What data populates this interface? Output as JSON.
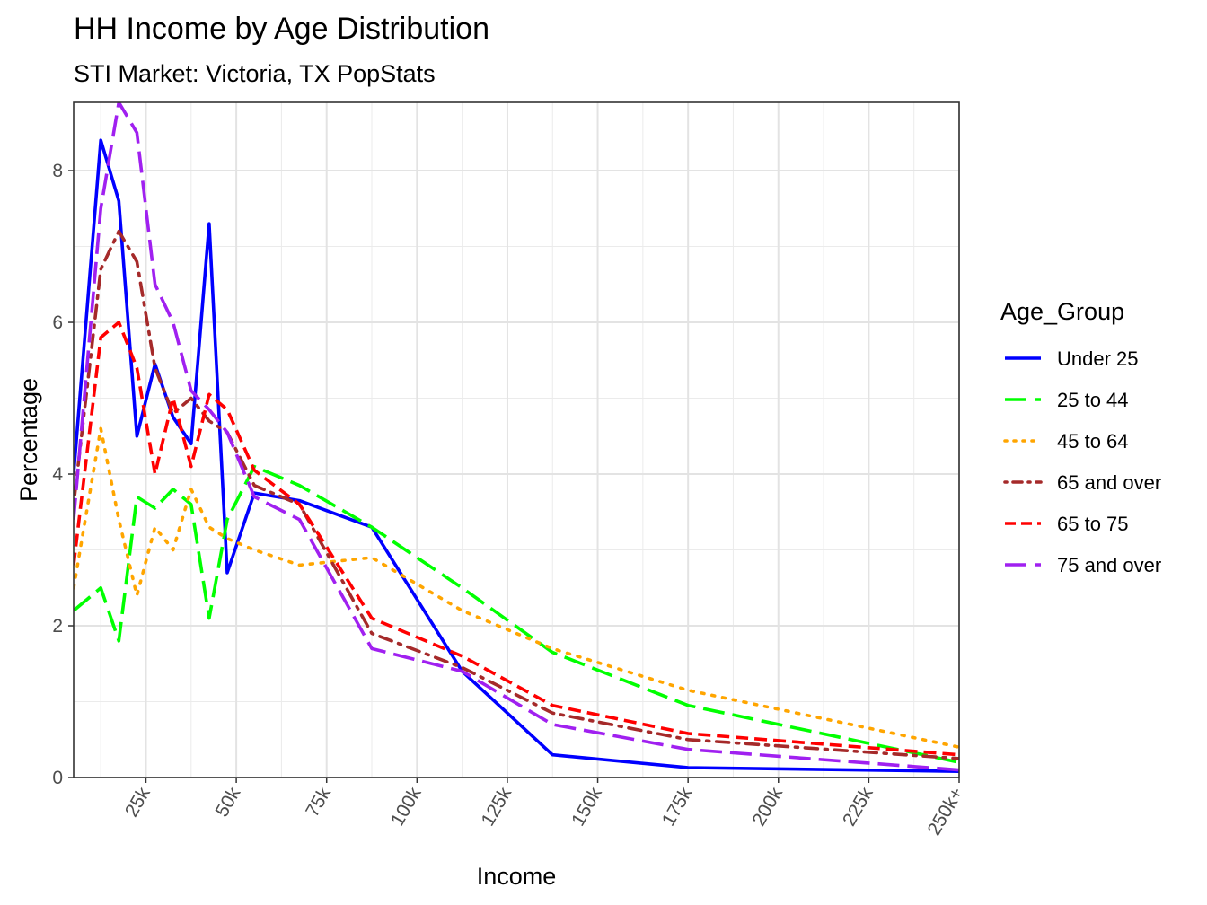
{
  "chart_data": {
    "type": "line",
    "title": "HH Income by Age Distribution",
    "subtitle": "STI Market: Victoria, TX PopStats",
    "xlabel": "Income",
    "ylabel": "Percentage",
    "xlim": [
      5,
      250
    ],
    "ylim": [
      0,
      8.9
    ],
    "x_ticks": [
      {
        "value": 25,
        "label": "25k"
      },
      {
        "value": 50,
        "label": "50k"
      },
      {
        "value": 75,
        "label": "75k"
      },
      {
        "value": 100,
        "label": "100k"
      },
      {
        "value": 125,
        "label": "125k"
      },
      {
        "value": 150,
        "label": "150k"
      },
      {
        "value": 175,
        "label": "175k"
      },
      {
        "value": 200,
        "label": "200k"
      },
      {
        "value": 225,
        "label": "225k"
      },
      {
        "value": 250,
        "label": "250k+"
      }
    ],
    "y_ticks": [
      {
        "value": 0,
        "label": "0"
      },
      {
        "value": 2,
        "label": "2"
      },
      {
        "value": 4,
        "label": "4"
      },
      {
        "value": 6,
        "label": "6"
      },
      {
        "value": 8,
        "label": "8"
      }
    ],
    "grid": true,
    "legend_position": "right",
    "legend_title": "Age_Group",
    "x": [
      5,
      12.5,
      17.5,
      22.5,
      27.5,
      32.5,
      37.5,
      42.5,
      47.5,
      55,
      67.5,
      87.5,
      112.5,
      137.5,
      175,
      250
    ],
    "series": [
      {
        "name": "Under 25",
        "color": "#0000FF",
        "dash": "solid",
        "values": [
          4.0,
          8.4,
          7.6,
          4.5,
          5.45,
          4.75,
          4.4,
          7.3,
          2.7,
          3.75,
          3.65,
          3.3,
          1.4,
          0.3,
          0.13,
          0.08
        ]
      },
      {
        "name": "25 to 44",
        "color": "#00FF00",
        "dash": "longdash",
        "values": [
          2.2,
          2.5,
          1.8,
          3.7,
          3.55,
          3.8,
          3.6,
          2.1,
          3.4,
          4.1,
          3.85,
          3.3,
          2.5,
          1.65,
          0.95,
          0.2
        ]
      },
      {
        "name": "45 to 64",
        "color": "#FFA500",
        "dash": "dotted",
        "values": [
          2.5,
          4.6,
          3.4,
          2.4,
          3.3,
          3.0,
          3.8,
          3.3,
          3.15,
          3.0,
          2.8,
          2.9,
          2.2,
          1.7,
          1.15,
          0.4
        ]
      },
      {
        "name": "65 and over",
        "color": "#A52A2A",
        "dash": "dotdash",
        "values": [
          3.6,
          6.7,
          7.2,
          6.8,
          5.4,
          4.8,
          5.0,
          4.7,
          4.55,
          3.85,
          3.6,
          1.9,
          1.45,
          0.85,
          0.5,
          0.25
        ]
      },
      {
        "name": "65 to 75",
        "color": "#FF0000",
        "dash": "dashed",
        "values": [
          2.8,
          5.8,
          6.0,
          5.4,
          4.0,
          5.0,
          4.1,
          5.05,
          4.85,
          4.05,
          3.6,
          2.1,
          1.6,
          0.95,
          0.58,
          0.3
        ]
      },
      {
        "name": "75 and over",
        "color": "#A020F0",
        "dash": "longdash",
        "values": [
          3.4,
          7.5,
          8.9,
          8.5,
          6.5,
          6.0,
          5.1,
          4.85,
          4.55,
          3.7,
          3.4,
          1.7,
          1.4,
          0.7,
          0.37,
          0.1
        ]
      }
    ]
  }
}
